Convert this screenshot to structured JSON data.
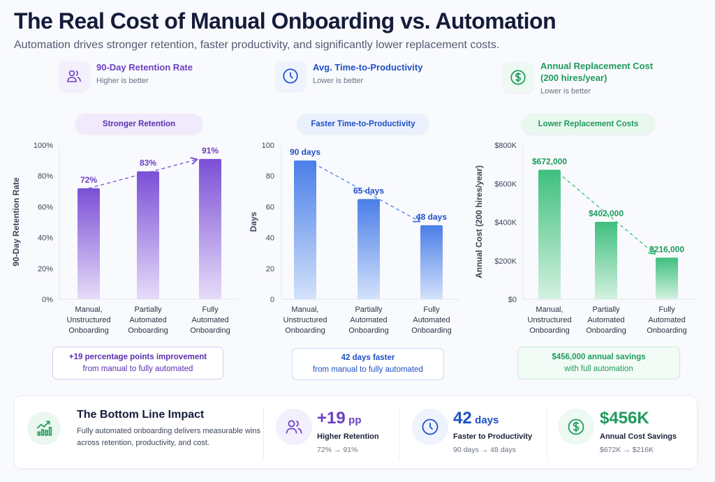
{
  "title": "The Real Cost of Manual Onboarding vs. Automation",
  "subtitle": "Automation drives stronger retention, faster productivity, and significantly lower replacement costs.",
  "headers": [
    {
      "title": "90-Day Retention Rate",
      "sub": "Higher is better",
      "icon": "users-icon",
      "color": "#6b3fc4"
    },
    {
      "title": "Avg. Time-to-Productivity",
      "sub": "Lower is better",
      "icon": "clock-icon",
      "color": "#1f4fc6"
    },
    {
      "title": "Annual Replacement Cost (200 hires/year)",
      "sub": "Lower is better",
      "icon": "dollar-icon",
      "color": "#1f9a5c"
    }
  ],
  "pills": [
    "Stronger Retention",
    "Faster Time-to-Productivity",
    "Lower Replacement Costs"
  ],
  "callouts": [
    {
      "line1": "+19 percentage points improvement",
      "line2": "from manual to fully automated"
    },
    {
      "line1": "42 days faster",
      "line2": "from manual to fully automated"
    },
    {
      "line1": "$456,000 annual savings",
      "line2": "with full automation"
    }
  ],
  "chart_data": [
    {
      "type": "bar",
      "ylabel": "90-Day Retention Rate",
      "ylim": [
        0,
        100
      ],
      "yticks": [
        "0%",
        "20%",
        "40%",
        "60%",
        "80%",
        "100%"
      ],
      "categories": [
        "Manual, Unstructured Onboarding",
        "Partially Automated Onboarding",
        "Fully Automated Onboarding"
      ],
      "values": [
        72,
        83,
        91
      ],
      "labels": [
        "72%",
        "83%",
        "91%"
      ],
      "color": "#7b4fd6",
      "trend": "up"
    },
    {
      "type": "bar",
      "ylabel": "Days",
      "ylim": [
        0,
        100
      ],
      "yticks": [
        "0",
        "20",
        "40",
        "60",
        "80",
        "100"
      ],
      "categories": [
        "Manual, Unstructured Onboarding",
        "Partially Automated Onboarding",
        "Fully Automated Onboarding"
      ],
      "values": [
        90,
        65,
        48
      ],
      "labels": [
        "90 days",
        "65 days",
        "48 days"
      ],
      "color": "#4a7ee8",
      "trend": "down"
    },
    {
      "type": "bar",
      "ylabel": "Annual Cost (200 hires/year)",
      "ylim": [
        0,
        800000
      ],
      "yticks": [
        "$0",
        "$200K",
        "$400K",
        "$600K",
        "$800K"
      ],
      "categories": [
        "Manual, Unstructured Onboarding",
        "Partially Automated Onboarding",
        "Fully Automated Onboarding"
      ],
      "values": [
        672000,
        402000,
        216000
      ],
      "labels": [
        "$672,000",
        "$402,000",
        "$216,000"
      ],
      "color": "#3fbf7f",
      "trend": "down"
    }
  ],
  "bottom": {
    "title": "The Bottom Line Impact",
    "desc": "Fully automated onboarding delivers measurable wins across retention, productivity, and cost.",
    "stats": [
      {
        "value": "+19",
        "unit": "pp",
        "label": "Higher Retention",
        "sub": "72% → 91%",
        "color": "#6b3fc4"
      },
      {
        "value": "42",
        "unit": "days",
        "label": "Faster to Productivity",
        "sub": "90 days → 48 days",
        "color": "#1f4fc6"
      },
      {
        "value": "$456K",
        "unit": "",
        "label": "Annual Cost Savings",
        "sub": "$672K → $216K",
        "color": "#1f9a5c"
      }
    ]
  }
}
